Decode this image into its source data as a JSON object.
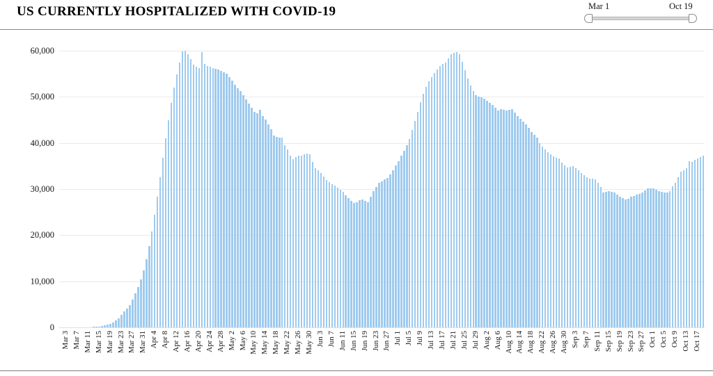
{
  "header": {
    "title": "US CURRENTLY HOSPITALIZED WITH COVID-19"
  },
  "slider": {
    "start_label": "Mar 1",
    "end_label": "Oct 19"
  },
  "chart_data": {
    "type": "bar",
    "title": "US CURRENTLY HOSPITALIZED WITH COVID-19",
    "xlabel": "",
    "ylabel": "",
    "ylim": [
      0,
      60000
    ],
    "grid": true,
    "legend": "none",
    "bar_color": "#9ECAEE",
    "x_range": [
      "Mar 1",
      "Oct 19"
    ],
    "y_ticks": [
      0,
      10000,
      20000,
      30000,
      40000,
      50000,
      60000
    ],
    "y_tick_labels": [
      "0",
      "10,000",
      "20,000",
      "30,000",
      "40,000",
      "50,000",
      "60,000"
    ],
    "x_tick_start_index": 2,
    "x_tick_step": 4,
    "x_tick_labels": [
      "Mar 3",
      "Mar 7",
      "Mar 11",
      "Mar 15",
      "Mar 19",
      "Mar 23",
      "Mar 27",
      "Mar 31",
      "Apr 4",
      "Apr 8",
      "Apr 12",
      "Apr 16",
      "Apr 20",
      "Apr 24",
      "Apr 28",
      "May 2",
      "May 6",
      "May 10",
      "May 14",
      "May 18",
      "May 22",
      "May 26",
      "May 30",
      "Jun 3",
      "Jun 7",
      "Jun 11",
      "Jun 15",
      "Jun 19",
      "Jun 23",
      "Jun 27",
      "Jul 1",
      "Jul 5",
      "Jul 9",
      "Jul 13",
      "Jul 17",
      "Jul 21",
      "Jul 25",
      "Jul 29",
      "Aug 2",
      "Aug 6",
      "Aug 10",
      "Aug 14",
      "Aug 18",
      "Aug 22",
      "Aug 26",
      "Aug 30",
      "Sep 3",
      "Sep 7",
      "Sep 11",
      "Sep 15",
      "Sep 19",
      "Sep 23",
      "Sep 27",
      "Oct 1",
      "Oct 5",
      "Oct 9",
      "Oct 13",
      "Oct 17"
    ],
    "values": [
      0,
      0,
      0,
      0,
      0,
      0,
      0,
      0,
      0,
      0,
      0,
      0,
      50,
      100,
      150,
      250,
      400,
      550,
      750,
      1050,
      1550,
      2000,
      2700,
      3400,
      4100,
      4900,
      6100,
      7400,
      8800,
      10400,
      12300,
      14800,
      17600,
      20800,
      24400,
      28300,
      32500,
      36800,
      41000,
      45000,
      48700,
      52000,
      54900,
      57500,
      59800,
      60000,
      59300,
      58200,
      57000,
      56500,
      56200,
      59700,
      57100,
      56700,
      56500,
      56300,
      56100,
      55900,
      55600,
      55300,
      55000,
      54300,
      53500,
      52600,
      51800,
      51200,
      50400,
      49500,
      48600,
      47700,
      46800,
      46400,
      47200,
      45900,
      45100,
      44000,
      42900,
      41600,
      41300,
      41200,
      41100,
      39500,
      38600,
      37300,
      36500,
      36900,
      37300,
      37200,
      37500,
      37700,
      37500,
      35900,
      34600,
      34100,
      33400,
      32700,
      32000,
      31500,
      31100,
      30800,
      30300,
      29800,
      29400,
      28600,
      28000,
      27400,
      27000,
      27200,
      27600,
      27700,
      27500,
      27200,
      28400,
      29600,
      30500,
      31300,
      31700,
      32100,
      32400,
      33200,
      34100,
      35200,
      36100,
      37200,
      38300,
      39500,
      40900,
      42800,
      44800,
      46800,
      48800,
      50600,
      52100,
      53300,
      54300,
      55200,
      56000,
      56700,
      57100,
      57500,
      58400,
      59200,
      59600,
      59700,
      59300,
      57600,
      55800,
      54000,
      52400,
      51200,
      50400,
      50000,
      49900,
      49600,
      49200,
      48700,
      48200,
      47700,
      47100,
      47300,
      47200,
      47000,
      47200,
      47300,
      46600,
      45900,
      45200,
      44600,
      44000,
      43200,
      42400,
      41800,
      41200,
      39900,
      39200,
      38600,
      38000,
      37600,
      37100,
      36800,
      36600,
      35800,
      35100,
      34700,
      34900,
      35000,
      34600,
      34000,
      33400,
      33000,
      32600,
      32200,
      32300,
      32100,
      31300,
      30500,
      29300,
      29400,
      29600,
      29400,
      29200,
      28800,
      28400,
      28000,
      27700,
      27900,
      28300,
      28500,
      28800,
      28900,
      29300,
      29700,
      30100,
      30200,
      30200,
      29900,
      29500,
      29400,
      29300,
      29300,
      29500,
      30600,
      31400,
      32500,
      33800,
      34100,
      34500,
      36000,
      35900,
      36300,
      36600,
      36900,
      37300
    ]
  }
}
